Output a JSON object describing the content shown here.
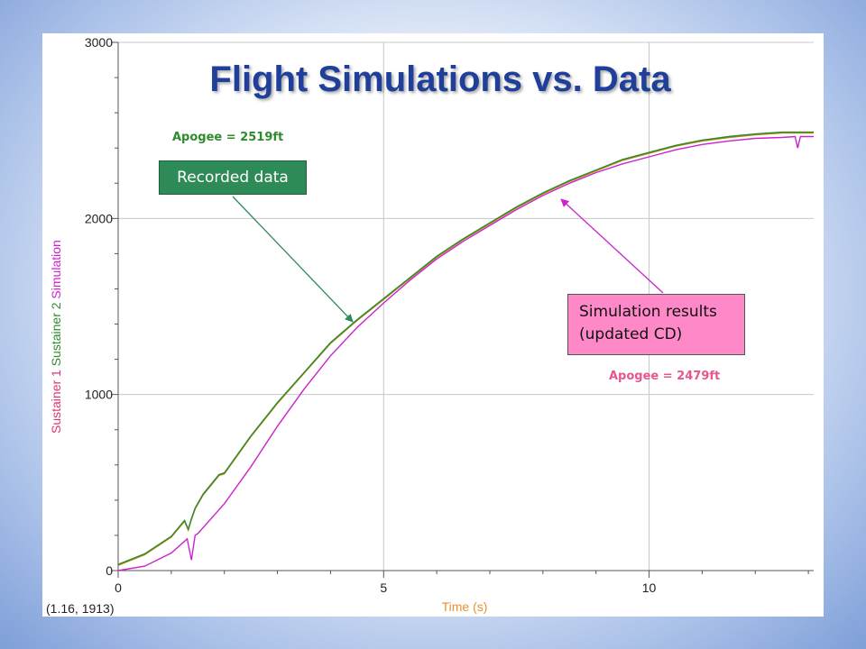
{
  "title": "Flight Simulations vs. Data",
  "annotations": {
    "recorded_apogee": "Apogee = 2519ft",
    "simulated_apogee": "Apogee = 2479ft",
    "recorded_label": "Recorded data",
    "simulation_label_line1": "Simulation results",
    "simulation_label_line2": "(updated CD)"
  },
  "cursor_readout": "(1.16, 1913)",
  "colors": {
    "title": "#1f3f9a",
    "sustainer1": "#b8860b",
    "sustainer2": "#2e8b2e",
    "simulation": "#cc22cc",
    "recorded_box": "#2e8b57",
    "simulation_box": "#ff88c8",
    "x_axis_label": "#e8922e"
  },
  "chart_data": {
    "type": "line",
    "title": "Flight Simulations vs. Data",
    "xlabel": "Time (s)",
    "ylabel_parts": [
      {
        "text": "Sustainer 1",
        "color": "#dd3377"
      },
      {
        "text": "Sustainer 2",
        "color": "#2e8b2e"
      },
      {
        "text": "Simulation",
        "color": "#cc22cc"
      }
    ],
    "xlim": [
      0,
      13.1
    ],
    "ylim": [
      0,
      3000
    ],
    "x_ticks": [
      0,
      5,
      10
    ],
    "y_ticks": [
      0,
      1000,
      2000,
      3000
    ],
    "grid": true,
    "series": [
      {
        "name": "Sustainer 1",
        "color": "#b8860b",
        "x": [
          0,
          0.5,
          1.0,
          1.25,
          1.32,
          1.38,
          1.45,
          1.6,
          1.9,
          2.0,
          2.5,
          3.0,
          3.5,
          4.0,
          4.5,
          5.0,
          5.5,
          6.0,
          6.5,
          7.0,
          7.5,
          8.0,
          8.5,
          9.0,
          9.5,
          10.0,
          10.5,
          11.0,
          11.5,
          12.0,
          12.5,
          13.1
        ],
        "y": [
          30,
          90,
          190,
          280,
          230,
          290,
          350,
          430,
          540,
          550,
          760,
          950,
          1120,
          1290,
          1420,
          1540,
          1660,
          1780,
          1880,
          1970,
          2060,
          2140,
          2210,
          2270,
          2330,
          2370,
          2410,
          2440,
          2460,
          2475,
          2485,
          2485
        ]
      },
      {
        "name": "Sustainer 2",
        "color": "#2e8b2e",
        "x": [
          0,
          0.5,
          1.0,
          1.25,
          1.32,
          1.38,
          1.45,
          1.6,
          1.9,
          2.0,
          2.5,
          3.0,
          3.5,
          4.0,
          4.5,
          5.0,
          5.5,
          6.0,
          6.5,
          7.0,
          7.5,
          8.0,
          8.5,
          9.0,
          9.5,
          10.0,
          10.5,
          11.0,
          11.5,
          12.0,
          12.5,
          13.1
        ],
        "y": [
          35,
          95,
          195,
          285,
          235,
          295,
          355,
          435,
          545,
          555,
          765,
          955,
          1125,
          1295,
          1425,
          1545,
          1665,
          1785,
          1885,
          1975,
          2065,
          2145,
          2215,
          2275,
          2335,
          2375,
          2415,
          2445,
          2465,
          2480,
          2490,
          2490
        ]
      },
      {
        "name": "Simulation",
        "color": "#cc22cc",
        "x": [
          0,
          0.5,
          1.0,
          1.3,
          1.38,
          1.45,
          1.5,
          2.0,
          2.5,
          3.0,
          3.5,
          4.0,
          4.5,
          5.0,
          5.5,
          6.0,
          6.5,
          7.0,
          7.5,
          8.0,
          8.5,
          9.0,
          9.5,
          10.0,
          10.5,
          11.0,
          11.5,
          12.0,
          12.5,
          12.75,
          12.8,
          12.85,
          13.1
        ],
        "y": [
          0,
          25,
          100,
          180,
          60,
          200,
          210,
          380,
          590,
          820,
          1030,
          1220,
          1380,
          1520,
          1650,
          1770,
          1870,
          1960,
          2050,
          2130,
          2200,
          2260,
          2310,
          2350,
          2390,
          2420,
          2440,
          2455,
          2460,
          2465,
          2400,
          2465,
          2465
        ]
      }
    ]
  }
}
